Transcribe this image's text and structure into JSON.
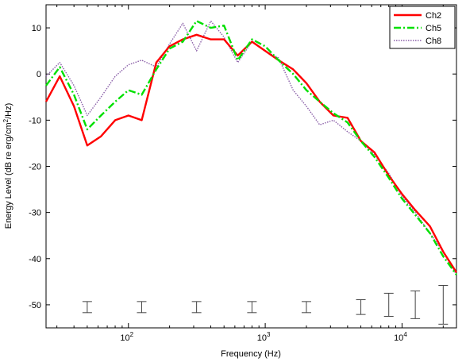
{
  "chart_data": {
    "type": "line",
    "xscale": "log",
    "xlim": [
      25,
      25000
    ],
    "ylim": [
      -55,
      15
    ],
    "xlabel": "Frequency (Hz)",
    "ylabel_main": "Energy Level (dB re erg/cm",
    "ylabel_sup": "2",
    "ylabel_tail": "/Hz)",
    "x_ticks": [
      {
        "value": 100,
        "base": "10",
        "exp": "2"
      },
      {
        "value": 1000,
        "base": "10",
        "exp": "3"
      },
      {
        "value": 10000,
        "base": "10",
        "exp": "4"
      }
    ],
    "y_ticks": [
      10,
      0,
      -10,
      -20,
      -30,
      -40,
      -50
    ],
    "grid": false,
    "legend_position": "top-right",
    "series": [
      {
        "name": "Ch2",
        "color": "#ff0000",
        "style": "solid",
        "x": [
          25,
          31.5,
          40,
          50,
          63,
          80,
          100,
          125,
          160,
          200,
          250,
          315,
          400,
          500,
          630,
          800,
          1000,
          1250,
          1600,
          2000,
          2500,
          3150,
          4000,
          5000,
          6300,
          8000,
          10000,
          12500,
          16000,
          20000,
          25000
        ],
        "y": [
          -6,
          -0.5,
          -7,
          -15.5,
          -13.5,
          -10,
          -9,
          -10,
          2.5,
          6,
          7.5,
          8.5,
          7.5,
          7.5,
          4,
          7,
          5,
          3,
          1,
          -2,
          -6,
          -9,
          -9.5,
          -14.5,
          -17,
          -22,
          -26,
          -29.5,
          -33,
          -38.5,
          -43
        ]
      },
      {
        "name": "Ch5",
        "color": "#00e000",
        "style": "dash-dot",
        "x": [
          25,
          31.5,
          40,
          50,
          63,
          80,
          100,
          125,
          160,
          200,
          250,
          315,
          400,
          500,
          630,
          800,
          1000,
          1250,
          1600,
          2000,
          2500,
          3150,
          4000,
          5000,
          6300,
          8000,
          10000,
          12500,
          16000,
          20000,
          25000
        ],
        "y": [
          -2.5,
          1.5,
          -4.5,
          -12,
          -9,
          -6,
          -3.5,
          -4.5,
          1,
          5.5,
          7,
          11.5,
          10,
          10.5,
          3,
          7.5,
          6,
          3,
          0,
          -3.5,
          -6,
          -8.5,
          -10.5,
          -14.5,
          -18,
          -22.5,
          -27,
          -30.5,
          -34.5,
          -39.5,
          -43.5
        ]
      },
      {
        "name": "Ch8",
        "color": "#8a5fa8",
        "style": "dotted",
        "x": [
          25,
          31.5,
          40,
          50,
          63,
          80,
          100,
          125,
          160,
          200,
          250,
          315,
          400,
          500,
          630,
          800,
          1000,
          1250,
          1600,
          2000,
          2500,
          3150,
          4000,
          5000,
          6300,
          8000,
          10000,
          12500,
          16000,
          20000,
          25000
        ],
        "y": [
          -0.5,
          2.5,
          -2.5,
          -9,
          -5,
          -0.5,
          2,
          3,
          1.5,
          6.5,
          11,
          5,
          11.5,
          8,
          2.5,
          7,
          5,
          3.5,
          -3.5,
          -7,
          -11,
          -10,
          -12.5,
          -14.5,
          -17.5,
          -21.5,
          -26.5,
          -30,
          -34.5,
          -38.5,
          -43.5
        ]
      }
    ],
    "error_bars": [
      {
        "x": 50,
        "center": -50.5,
        "half": 1.2
      },
      {
        "x": 125,
        "center": -50.5,
        "half": 1.2
      },
      {
        "x": 315,
        "center": -50.5,
        "half": 1.2
      },
      {
        "x": 800,
        "center": -50.5,
        "half": 1.2
      },
      {
        "x": 2000,
        "center": -50.5,
        "half": 1.2
      },
      {
        "x": 5000,
        "center": -50.5,
        "half": 1.6
      },
      {
        "x": 8000,
        "center": -50,
        "half": 2.5
      },
      {
        "x": 12500,
        "center": -50,
        "half": 3
      },
      {
        "x": 20000,
        "center": -50,
        "half": 4.2
      }
    ]
  }
}
